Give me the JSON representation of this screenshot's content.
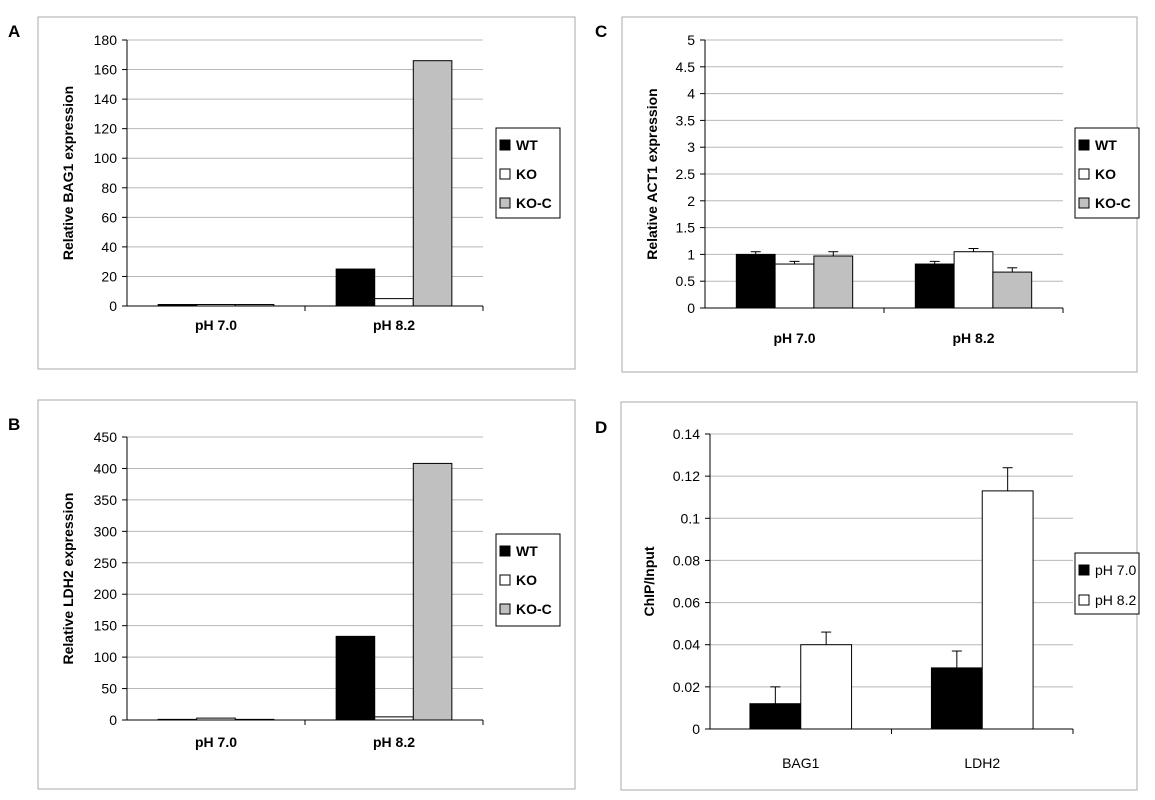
{
  "chart_data": [
    {
      "panel": "A",
      "type": "bar",
      "categories": [
        "pH 7.0",
        "pH 8.2"
      ],
      "ylabel": "Relative BAG1 expression",
      "ylim": [
        0,
        180
      ],
      "yticks": [
        0,
        20,
        40,
        60,
        80,
        100,
        120,
        140,
        160,
        180
      ],
      "grid": true,
      "legend_position": "right",
      "bold_labels": true,
      "series": [
        {
          "name": "WT",
          "color": "#000000",
          "values": [
            1,
            25
          ]
        },
        {
          "name": "KO",
          "color": "#ffffff",
          "values": [
            1,
            5
          ]
        },
        {
          "name": "KO-C",
          "color": "#c0c0c0",
          "values": [
            1,
            166
          ]
        }
      ]
    },
    {
      "panel": "B",
      "type": "bar",
      "categories": [
        "pH 7.0",
        "pH 8.2"
      ],
      "ylabel": "Relative LDH2 expression",
      "ylim": [
        0,
        450
      ],
      "yticks": [
        0,
        50,
        100,
        150,
        200,
        250,
        300,
        350,
        400,
        450
      ],
      "grid": true,
      "legend_position": "right",
      "bold_labels": true,
      "series": [
        {
          "name": "WT",
          "color": "#000000",
          "values": [
            1,
            133
          ]
        },
        {
          "name": "KO",
          "color": "#ffffff",
          "values": [
            3,
            5
          ]
        },
        {
          "name": "KO-C",
          "color": "#c0c0c0",
          "values": [
            1,
            408
          ]
        }
      ]
    },
    {
      "panel": "C",
      "type": "bar",
      "categories": [
        "pH 7.0",
        "pH 8.2"
      ],
      "ylabel": "Relative ACT1 expression",
      "ylim": [
        0,
        5
      ],
      "yticks": [
        0,
        0.5,
        1,
        1.5,
        2,
        2.5,
        3,
        3.5,
        4,
        4.5,
        5
      ],
      "grid": true,
      "legend_position": "right",
      "bold_labels": true,
      "series": [
        {
          "name": "WT",
          "color": "#000000",
          "values": [
            1.0,
            0.82
          ],
          "errors": [
            0.05,
            0.05
          ]
        },
        {
          "name": "KO",
          "color": "#ffffff",
          "values": [
            0.82,
            1.05
          ],
          "errors": [
            0.05,
            0.06
          ]
        },
        {
          "name": "KO-C",
          "color": "#c0c0c0",
          "values": [
            0.97,
            0.67
          ],
          "errors": [
            0.08,
            0.08
          ]
        }
      ]
    },
    {
      "panel": "D",
      "type": "bar",
      "categories": [
        "BAG1",
        "LDH2"
      ],
      "ylabel": "ChIP/Input",
      "ylim": [
        0,
        0.14
      ],
      "yticks": [
        0,
        0.02,
        0.04,
        0.06,
        0.08,
        0.1,
        0.12,
        0.14
      ],
      "grid": true,
      "legend_position": "right",
      "bold_labels": false,
      "series": [
        {
          "name": "pH 7.0",
          "color": "#000000",
          "values": [
            0.012,
            0.029
          ],
          "errors": [
            0.008,
            0.008
          ]
        },
        {
          "name": "pH 8.2",
          "color": "#ffffff",
          "values": [
            0.04,
            0.113
          ],
          "errors": [
            0.006,
            0.011
          ]
        }
      ]
    }
  ]
}
